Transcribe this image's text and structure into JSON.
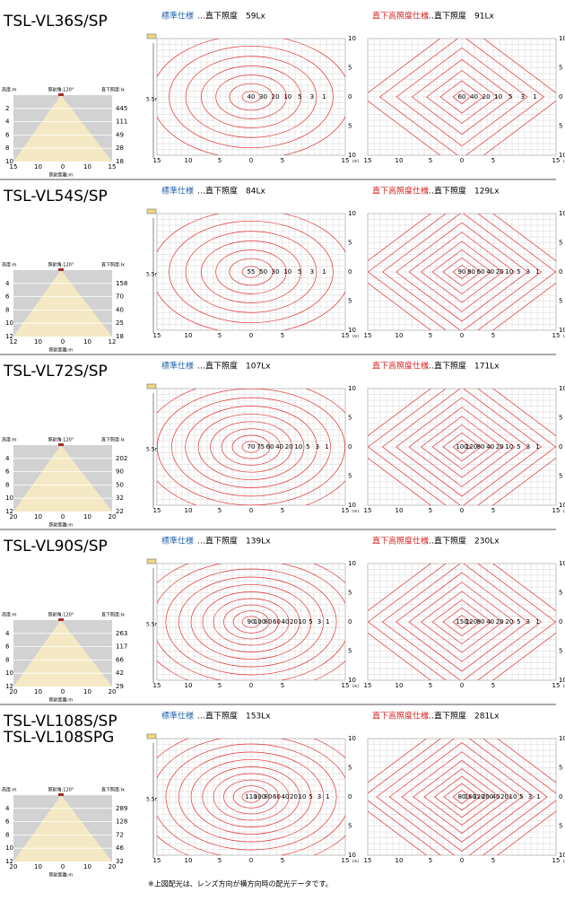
{
  "axis": {
    "x_ticks": [
      "15",
      "10",
      "5",
      "0",
      "5",
      "15"
    ],
    "x_unit": "(m)",
    "y_ticks": [
      "10",
      "5",
      "0",
      "5",
      "10"
    ]
  },
  "height_note": "5.5m",
  "cone_labels": {
    "height": "高度:m",
    "angle": "照射角:120°",
    "lux": "直下照度:lx",
    "distance": "照射距離:m"
  },
  "spec_names": [
    "標準仕様",
    "直下高照度仕様"
  ],
  "sections": [
    {
      "models": [
        "TSL-VL36S/SP"
      ],
      "cone": {
        "heights": [
          "2",
          "4",
          "6",
          "8",
          "10"
        ],
        "luxes": [
          "445",
          "111",
          "49",
          "28",
          "18"
        ],
        "distance_ticks": [
          "15",
          "10",
          "0",
          "10",
          "15"
        ]
      },
      "plots": [
        {
          "illuminance": "…直下照度　59Lx",
          "contours": [
            "40",
            "30",
            "20",
            "10",
            "5",
            "3",
            "1"
          ]
        },
        {
          "illuminance": "…直下照度　91Lx",
          "contours": [
            "60",
            "40",
            "20",
            "10",
            "5",
            "3",
            "1"
          ]
        }
      ]
    },
    {
      "models": [
        "TSL-VL54S/SP"
      ],
      "cone": {
        "heights": [
          "4",
          "6",
          "8",
          "10",
          "12"
        ],
        "luxes": [
          "158",
          "70",
          "40",
          "25",
          "18"
        ],
        "distance_ticks": [
          "12",
          "10",
          "0",
          "10",
          "12"
        ]
      },
      "plots": [
        {
          "illuminance": "…直下照度　84Lx",
          "contours": [
            "55",
            "50",
            "30",
            "10",
            "5",
            "3",
            "1"
          ]
        },
        {
          "illuminance": "…直下照度　129Lx",
          "contours": [
            "90",
            "80",
            "60",
            "40",
            "20",
            "10",
            "5",
            "3",
            "1"
          ]
        }
      ]
    },
    {
      "models": [
        "TSL-VL72S/SP"
      ],
      "cone": {
        "heights": [
          "4",
          "6",
          "8",
          "10",
          "12"
        ],
        "luxes": [
          "202",
          "90",
          "50",
          "32",
          "22"
        ],
        "distance_ticks": [
          "20",
          "10",
          "0",
          "10",
          "20"
        ]
      },
      "plots": [
        {
          "illuminance": "…直下照度　107Lx",
          "contours": [
            "70",
            "75",
            "60",
            "40",
            "20",
            "10",
            "5",
            "3",
            "1"
          ]
        },
        {
          "illuminance": "…直下照度　171Lx",
          "contours": [
            "100",
            "120",
            "80",
            "40",
            "20",
            "10",
            "5",
            "3",
            "1"
          ]
        }
      ]
    },
    {
      "models": [
        "TSL-VL90S/SP"
      ],
      "cone": {
        "heights": [
          "4",
          "6",
          "8",
          "10",
          "12"
        ],
        "luxes": [
          "263",
          "117",
          "66",
          "42",
          "29"
        ],
        "distance_ticks": [
          "20",
          "10",
          "0",
          "10",
          "20"
        ]
      },
      "plots": [
        {
          "illuminance": "…直下照度　139Lx",
          "contours": [
            "90",
            "100",
            "80",
            "60",
            "40",
            "20",
            "10",
            "5",
            "3",
            "1"
          ]
        },
        {
          "illuminance": "…直下照度　230Lx",
          "contours": [
            "150",
            "120",
            "80",
            "40",
            "20",
            "20",
            "5",
            "3",
            "1"
          ]
        }
      ]
    },
    {
      "models": [
        "TSL-VL108S/SP",
        "TSL-VL108SPG"
      ],
      "cone": {
        "heights": [
          "4",
          "6",
          "8",
          "10",
          "12"
        ],
        "luxes": [
          "289",
          "128",
          "72",
          "46",
          "32"
        ],
        "distance_ticks": [
          "20",
          "10",
          "0",
          "10",
          "20"
        ]
      },
      "plots": [
        {
          "illuminance": "…直下照度　153Lx",
          "contours": [
            "110",
            "100",
            "80",
            "60",
            "40",
            "20",
            "10",
            "5",
            "3",
            "1"
          ]
        },
        {
          "illuminance": "…直下照度　281Lx",
          "contours": [
            "80",
            "160",
            "120",
            "200",
            "40",
            "20",
            "10",
            "5",
            "3",
            "1"
          ]
        }
      ]
    }
  ],
  "footnote": "※上図配光は、レンズ方向が横方向時の配光データです。"
}
